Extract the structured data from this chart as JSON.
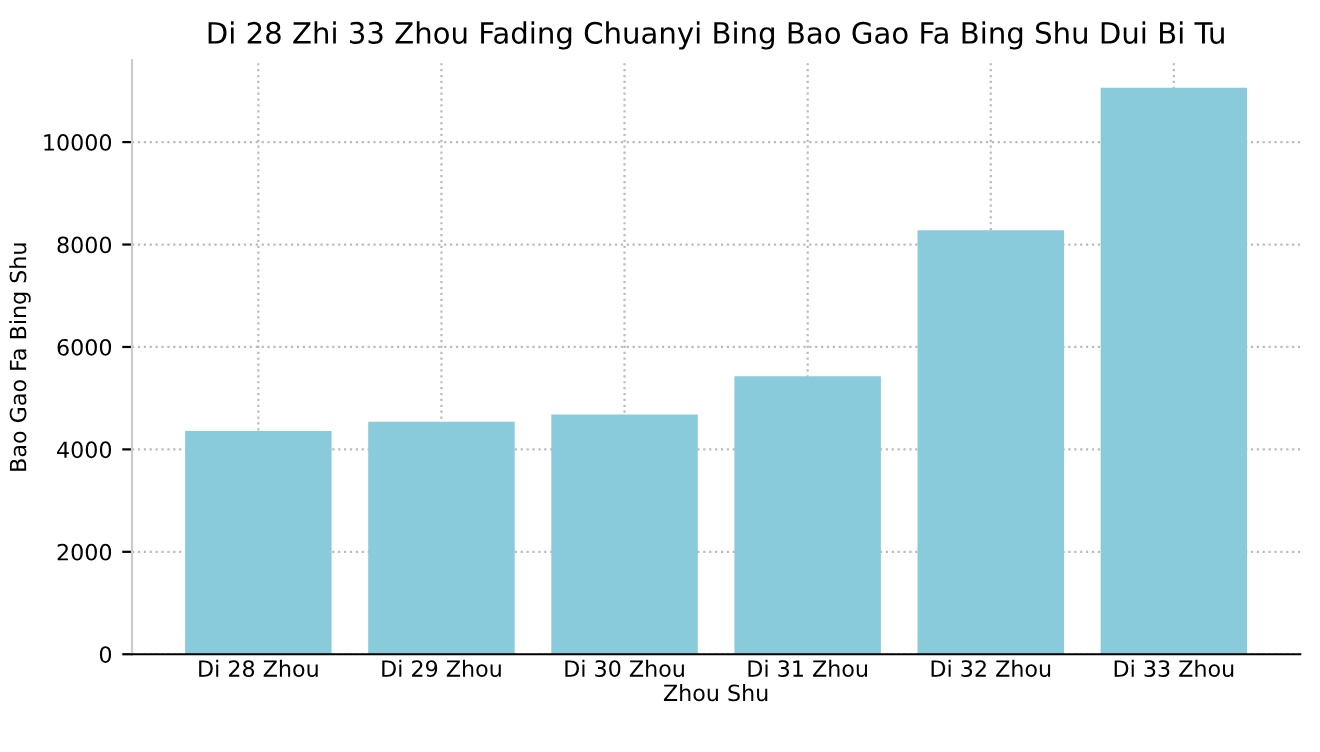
{
  "chart_data": {
    "type": "bar",
    "title": "Di 28 Zhi 33 Zhou Fading Chuanyi Bing Bao Gao Fa Bing Shu Dui Bi Tu",
    "xlabel": "Zhou Shu",
    "ylabel": "Bao Gao Fa Bing Shu",
    "categories": [
      "Di 28 Zhou",
      "Di 29 Zhou",
      "Di 30 Zhou",
      "Di 31 Zhou",
      "Di 32 Zhou",
      "Di 33 Zhou"
    ],
    "values": [
      4360,
      4540,
      4680,
      5430,
      8280,
      11060
    ],
    "color": "#89cbdb",
    "ylim": [
      0,
      11600
    ],
    "yticks": [
      0,
      2000,
      4000,
      6000,
      8000,
      10000
    ],
    "grid": true
  }
}
